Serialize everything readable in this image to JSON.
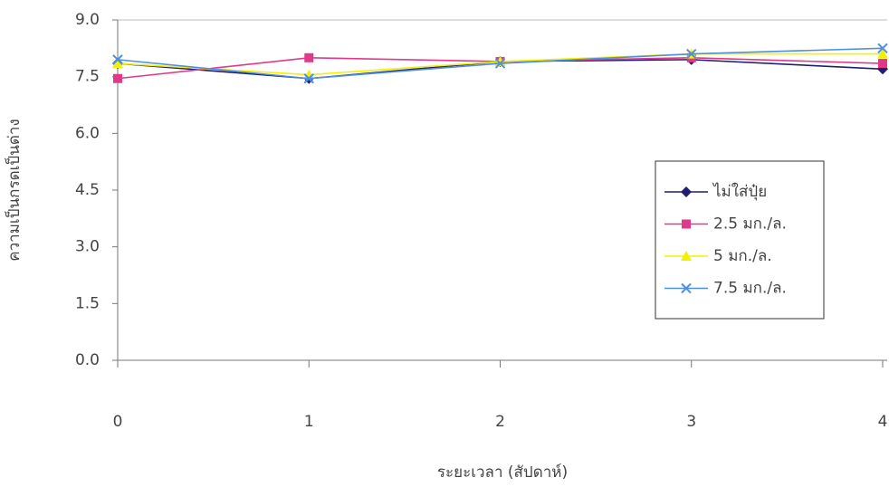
{
  "chart_data": {
    "type": "line",
    "x_label": "ระยะเวลา (สัปดาห์)",
    "y_label": "ความเป็นกรดเป็นด่าง",
    "x": [
      0,
      1,
      2,
      3,
      4
    ],
    "xlim": [
      0,
      4
    ],
    "xticks": [
      0,
      1,
      2,
      3,
      4
    ],
    "ylim": [
      0,
      9
    ],
    "yticks": [
      {
        "value": 0,
        "label": "0.0"
      },
      {
        "value": 1.5,
        "label": "1.5"
      },
      {
        "value": 3,
        "label": "3.0"
      },
      {
        "value": 4.5,
        "label": "4.5"
      },
      {
        "value": 6,
        "label": "6.0"
      },
      {
        "value": 7.5,
        "label": "7.5"
      },
      {
        "value": 9,
        "label": "9.0"
      }
    ],
    "legend": "right",
    "series": [
      {
        "name": "ไม่ใส่ปุ๋ย",
        "color": "#1f1f6e",
        "marker": "diamond",
        "values": [
          7.85,
          7.45,
          7.9,
          7.95,
          7.7
        ]
      },
      {
        "name": "2.5 มก./ล.",
        "color": "#e0398a",
        "marker": "square",
        "values": [
          7.45,
          8.0,
          7.9,
          8.0,
          7.85
        ]
      },
      {
        "name": "5 มก./ล.",
        "color": "#f2f200",
        "marker": "triangle",
        "values": [
          7.85,
          7.55,
          7.9,
          8.1,
          8.1
        ]
      },
      {
        "name": "7.5 มก./ล.",
        "color": "#4f8fe0",
        "marker": "cross",
        "values": [
          7.95,
          7.45,
          7.85,
          8.1,
          8.25
        ]
      }
    ]
  }
}
